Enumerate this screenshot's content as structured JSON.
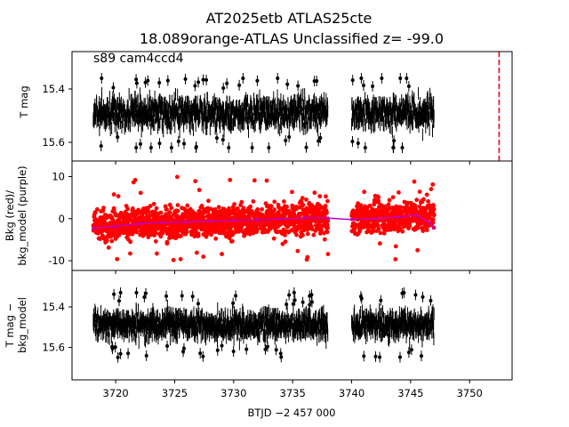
{
  "title_line1": "AT2025etb  ATLAS25cte",
  "title_line2": "18.089orange-ATLAS Unclassified z= -99.0",
  "annotation": "s89 cam4ccd4",
  "xlabel": "BTJD −2 457 000",
  "chart_data": [
    {
      "type": "scatter",
      "panel": "top",
      "ylabel": "T mag",
      "yticks": [
        15.4,
        15.6
      ],
      "ylim": [
        15.67,
        15.26
      ],
      "inverted_y": true,
      "series": [
        {
          "color": "#000000",
          "marker": "point-with-errorbar",
          "segments": [
            [
              3718.1,
              3738.0
            ],
            [
              3740.0,
              3747.0
            ]
          ],
          "median": 15.49,
          "scatter": 0.04,
          "min": 15.36,
          "max": 15.62
        }
      ],
      "vline": {
        "x": 3752.5,
        "color": "#ff0000",
        "style": "dashed"
      }
    },
    {
      "type": "scatter",
      "panel": "middle",
      "ylabel_lines": [
        "Bkg (red)/",
        "bkg_model (purple)"
      ],
      "yticks": [
        -10,
        0,
        10
      ],
      "ylim": [
        -12.3,
        13.7
      ],
      "series": [
        {
          "color": "#ff0000",
          "marker": "dot",
          "segments": [
            [
              3718.1,
              3738.0
            ],
            [
              3740.0,
              3747.0
            ]
          ],
          "min": -11,
          "max": 12.5
        },
        {
          "color": "#bf00bf",
          "marker": "line",
          "points": [
            [
              3718.1,
              -2.3
            ],
            [
              3720,
              -1.8
            ],
            [
              3722,
              -1.2
            ],
            [
              3724,
              -0.9
            ],
            [
              3726,
              -0.8
            ],
            [
              3728,
              -0.6
            ],
            [
              3730,
              -0.4
            ],
            [
              3732,
              -0.3
            ],
            [
              3734,
              -0.1
            ],
            [
              3736,
              0.2
            ],
            [
              3738,
              0.1
            ],
            [
              3740,
              -0.2
            ],
            [
              3742,
              0.0
            ],
            [
              3744,
              0.4
            ],
            [
              3745.5,
              0.8
            ],
            [
              3746.5,
              -0.8
            ],
            [
              3747.0,
              -2.2
            ]
          ]
        }
      ]
    },
    {
      "type": "scatter",
      "panel": "bottom",
      "ylabel_lines": [
        "T mag −",
        "bkg_model"
      ],
      "yticks": [
        15.4,
        15.6
      ],
      "ylim": [
        15.76,
        15.22
      ],
      "inverted_y": true,
      "series": [
        {
          "color": "#000000",
          "marker": "point-with-errorbar",
          "segments": [
            [
              3718.1,
              3738.0
            ],
            [
              3740.0,
              3747.0
            ]
          ],
          "median": 15.49,
          "scatter": 0.045,
          "min": 15.33,
          "max": 15.67
        }
      ]
    }
  ],
  "xticks": [
    3720,
    3725,
    3730,
    3735,
    3740,
    3745,
    3750
  ],
  "xlim": [
    3716.3,
    3753.6
  ]
}
